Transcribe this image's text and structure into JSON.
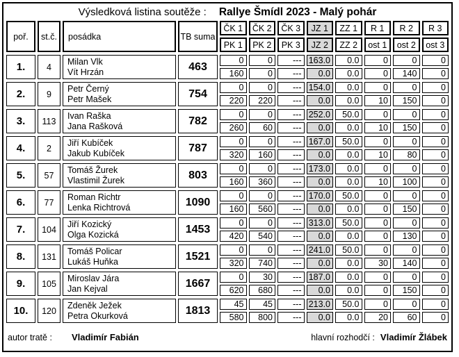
{
  "title": {
    "label": "Výsledková listina soutěže :",
    "event": "Rallye Šmídl 2023 - Malý pohár"
  },
  "columns": {
    "pos": "poř.",
    "start_no": "st.č.",
    "crew": "posádka",
    "tb_sum": "TB suma",
    "top": [
      "ČK 1",
      "ČK 2",
      "ČK 3",
      "JZ 1",
      "ZZ 1",
      "R 1",
      "R 2",
      "R 3"
    ],
    "bottom": [
      "PK 1",
      "PK 2",
      "PK 3",
      "JZ 2",
      "ZZ 2",
      "ost 1",
      "ost 2",
      "ost 3"
    ],
    "highlighted_index": 3
  },
  "rows": [
    {
      "pos": "1.",
      "start_no": "4",
      "driver": "Milan Vlk",
      "codriver": "Vít Hrzán",
      "tb_sum": "463",
      "top": [
        "0",
        "0",
        "---",
        "163.0",
        "0.0",
        "0",
        "0",
        "0"
      ],
      "bottom": [
        "160",
        "0",
        "---",
        "0.0",
        "0.0",
        "0",
        "140",
        "0"
      ]
    },
    {
      "pos": "2.",
      "start_no": "9",
      "driver": "Petr Černý",
      "codriver": "Petr Mašek",
      "tb_sum": "754",
      "top": [
        "0",
        "0",
        "---",
        "154.0",
        "0.0",
        "0",
        "0",
        "0"
      ],
      "bottom": [
        "220",
        "220",
        "---",
        "0.0",
        "0.0",
        "10",
        "150",
        "0"
      ]
    },
    {
      "pos": "3.",
      "start_no": "113",
      "driver": "Ivan Raška",
      "codriver": "Jana Rašková",
      "tb_sum": "782",
      "top": [
        "0",
        "0",
        "---",
        "252.0",
        "50.0",
        "0",
        "0",
        "0"
      ],
      "bottom": [
        "260",
        "60",
        "---",
        "0.0",
        "0.0",
        "10",
        "150",
        "0"
      ]
    },
    {
      "pos": "4.",
      "start_no": "2",
      "driver": "Jiří Kubíček",
      "codriver": "Jakub Kubíček",
      "tb_sum": "787",
      "top": [
        "0",
        "0",
        "---",
        "167.0",
        "50.0",
        "0",
        "0",
        "0"
      ],
      "bottom": [
        "320",
        "160",
        "---",
        "0.0",
        "0.0",
        "10",
        "80",
        "0"
      ]
    },
    {
      "pos": "5.",
      "start_no": "57",
      "driver": "Tomáš Žurek",
      "codriver": "Vlastimil Žurek",
      "tb_sum": "803",
      "top": [
        "0",
        "0",
        "---",
        "173.0",
        "0.0",
        "0",
        "0",
        "0"
      ],
      "bottom": [
        "160",
        "360",
        "---",
        "0.0",
        "0.0",
        "10",
        "100",
        "0"
      ]
    },
    {
      "pos": "6.",
      "start_no": "77",
      "driver": "Roman Richtr",
      "codriver": "Lenka Richtrová",
      "tb_sum": "1090",
      "top": [
        "0",
        "0",
        "---",
        "170.0",
        "50.0",
        "0",
        "0",
        "0"
      ],
      "bottom": [
        "160",
        "560",
        "---",
        "0.0",
        "0.0",
        "0",
        "150",
        "0"
      ]
    },
    {
      "pos": "7.",
      "start_no": "104",
      "driver": "Jiří Kozický",
      "codriver": "Olga Kozická",
      "tb_sum": "1453",
      "top": [
        "0",
        "0",
        "---",
        "313.0",
        "50.0",
        "0",
        "0",
        "0"
      ],
      "bottom": [
        "420",
        "540",
        "---",
        "0.0",
        "0.0",
        "0",
        "130",
        "0"
      ]
    },
    {
      "pos": "8.",
      "start_no": "131",
      "driver": "Tomáš Policar",
      "codriver": "Lukáš Huňka",
      "tb_sum": "1521",
      "top": [
        "0",
        "0",
        "---",
        "241.0",
        "50.0",
        "0",
        "0",
        "0"
      ],
      "bottom": [
        "320",
        "740",
        "---",
        "0.0",
        "0.0",
        "30",
        "140",
        "0"
      ]
    },
    {
      "pos": "9.",
      "start_no": "105",
      "driver": "Miroslav Jára",
      "codriver": "Jan Kejval",
      "tb_sum": "1667",
      "top": [
        "0",
        "30",
        "---",
        "187.0",
        "0.0",
        "0",
        "0",
        "0"
      ],
      "bottom": [
        "620",
        "680",
        "---",
        "0.0",
        "0.0",
        "0",
        "150",
        "0"
      ]
    },
    {
      "pos": "10.",
      "start_no": "120",
      "driver": "Zdeněk Ježek",
      "codriver": "Petra Okurková",
      "tb_sum": "1813",
      "top": [
        "45",
        "45",
        "---",
        "213.0",
        "50.0",
        "0",
        "0",
        "0"
      ],
      "bottom": [
        "580",
        "800",
        "---",
        "0.0",
        "0.0",
        "20",
        "60",
        "0"
      ]
    }
  ],
  "footer": {
    "author_label": "autor tratě :",
    "author_name": "Vladimír Fabián",
    "referee_label": "hlavní rozhodčí :",
    "referee_name": "Vladimír Žlábek"
  },
  "colors": {
    "highlight_bg": "#d9d9d9",
    "border": "#000000",
    "background": "#ffffff"
  }
}
